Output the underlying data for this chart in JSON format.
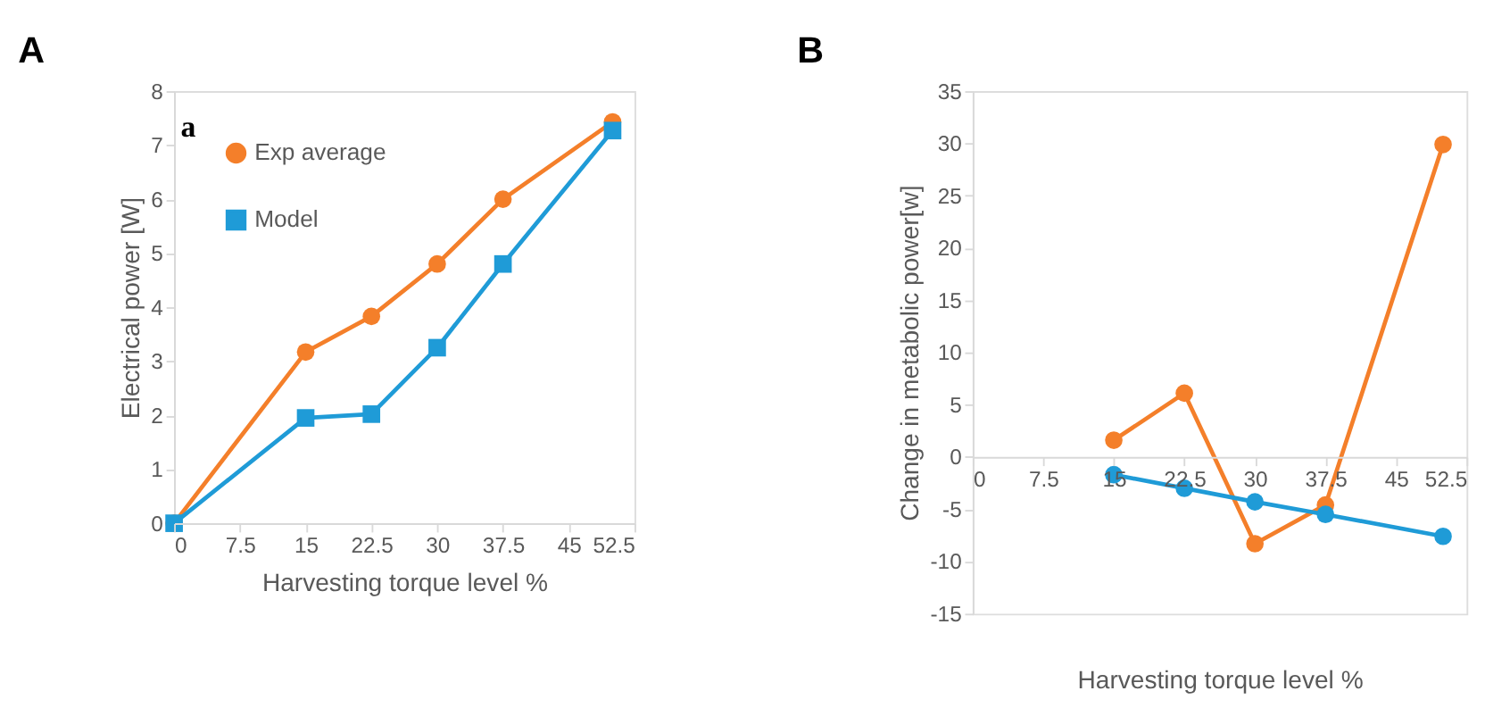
{
  "chart_data": [
    {
      "type": "line",
      "title": "A",
      "xlabel": "Harvesting torque level %",
      "ylabel": "Electrical power [W]",
      "x": [
        0,
        15,
        22.5,
        30,
        37.5,
        50
      ],
      "series": [
        {
          "name": "Exp average",
          "color": "#f47f2a",
          "marker": "circle",
          "values": [
            0,
            3.17,
            3.83,
            4.8,
            6.0,
            7.43
          ]
        },
        {
          "name": "Model",
          "color": "#1f9bd7",
          "marker": "square",
          "values": [
            0,
            1.95,
            2.02,
            3.25,
            4.8,
            7.27
          ]
        }
      ],
      "xlim": [
        0,
        52.5
      ],
      "xticks": [
        0,
        7.5,
        15,
        22.5,
        30,
        37.5,
        45,
        52.5
      ],
      "ylim": [
        0,
        8
      ],
      "yticks": [
        0,
        1,
        2,
        3,
        4,
        5,
        6,
        7,
        8
      ],
      "grid": false,
      "legend": "top left",
      "annotations": [
        "a"
      ]
    },
    {
      "type": "line",
      "title": "B",
      "xlabel": "Harvesting torque level %",
      "ylabel": "Change in metabolic power[w]",
      "x": [
        15,
        22.5,
        30,
        37.5,
        50
      ],
      "series": [
        {
          "color": "#f47f2a",
          "marker": "circle",
          "values": [
            1.6,
            6.1,
            -8.3,
            -4.6,
            29.9
          ]
        },
        {
          "color": "#1f9bd7",
          "marker": "circle",
          "values": [
            -1.7,
            -3.0,
            -4.3,
            -5.5,
            -7.6
          ]
        }
      ],
      "xlim": [
        0,
        52.5
      ],
      "xticks": [
        0,
        7.5,
        15,
        22.5,
        30,
        37.5,
        45,
        52.5
      ],
      "ylim": [
        -15,
        35
      ],
      "yticks": [
        -15,
        -10,
        -5,
        0,
        5,
        10,
        15,
        20,
        25,
        30,
        35
      ],
      "grid": false,
      "legend": false
    }
  ]
}
